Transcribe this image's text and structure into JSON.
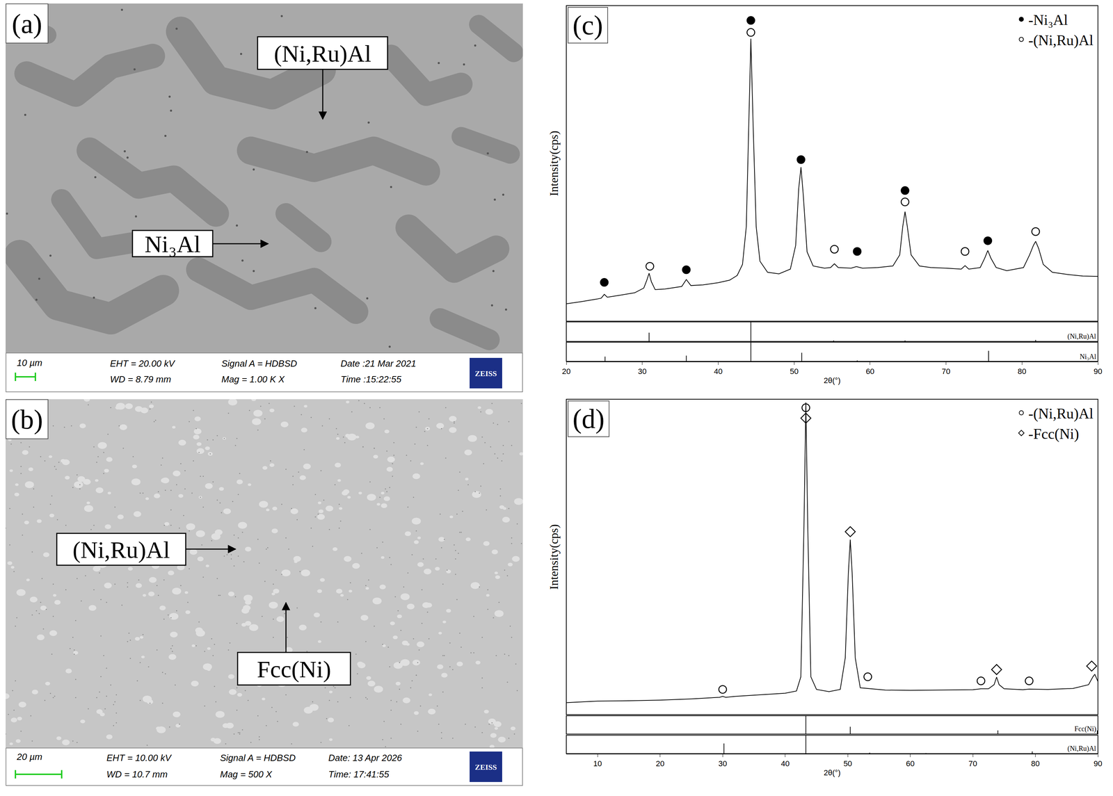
{
  "images": [
    {
      "panel": "(a)",
      "labels": [
        "(Ni,Ru)Al",
        "Ni₃Al"
      ],
      "info_bar": {
        "scale_bar": "10 µm",
        "eht": "EHT = 20.00 kV",
        "wd": "WD = 8.79 mm",
        "signal": "Signal A = HDBSD",
        "mag": "Mag = 1.00 K X",
        "date": "Date :21 Mar 2021",
        "time": "Time :15:22:55",
        "logo": "ZEISS"
      }
    },
    {
      "panel": "(b)",
      "labels": [
        "(Ni,Ru)Al",
        "Fcc(Ni)"
      ],
      "info_bar": {
        "scale_bar": "20 µm",
        "eht": "EHT = 10.00 kV",
        "wd": "WD = 10.7 mm",
        "signal": "Signal A = HDBSD",
        "mag": "Mag = 500 X",
        "date": "Date: 13 Apr 2026",
        "time": "Time: 17:41:55",
        "logo": "ZEISS"
      }
    }
  ],
  "chart_data": [
    {
      "panel": "(c)",
      "type": "line",
      "x_label": "2θ(°)",
      "y_label": "Intensity(cps)",
      "xlim": [
        20,
        90
      ],
      "xticks": [
        20,
        30,
        40,
        50,
        60,
        70,
        80,
        90
      ],
      "ylim": [
        0,
        100
      ],
      "yticks": [],
      "tick_labels": "x",
      "grid": false,
      "legend": "upper right",
      "pattern": {
        "color": "#000000",
        "x": [
          20,
          22,
          24,
          24.6,
          25.0,
          25.4,
          27,
          29,
          30.2,
          30.6,
          30.9,
          31.2,
          31.7,
          33,
          35.2,
          35.8,
          36.4,
          38,
          40,
          41.5,
          42.5,
          43.2,
          43.7,
          44.0,
          44.3,
          44.6,
          45.0,
          45.5,
          46.5,
          48,
          49.5,
          50.2,
          50.6,
          50.9,
          51.2,
          51.7,
          52.5,
          54,
          54.8,
          55.3,
          55.8,
          57.5,
          58.2,
          59,
          61,
          63,
          63.9,
          64.3,
          64.6,
          64.9,
          65.4,
          66.5,
          68,
          70,
          72,
          72.5,
          73,
          74.5,
          75.1,
          75.5,
          75.9,
          76.6,
          78,
          80.2,
          81.0,
          81.5,
          81.8,
          82.2,
          82.8,
          84,
          86,
          88,
          90
        ],
        "values": [
          5.5,
          6.2,
          7.0,
          7.3,
          8.5,
          7.6,
          8.2,
          9.0,
          10.5,
          13,
          15.2,
          12.5,
          10,
          10.2,
          11,
          13.2,
          11.3,
          11.5,
          12.2,
          13,
          14.5,
          18,
          30,
          60,
          89.5,
          62,
          30,
          19,
          15.5,
          15,
          16.5,
          24,
          42,
          48.8,
          40,
          22,
          17.5,
          16.8,
          17,
          18.2,
          17,
          16.8,
          17.3,
          16.8,
          17,
          17.5,
          21,
          30,
          34.7,
          30,
          21,
          17.5,
          17,
          16.8,
          16.5,
          17.6,
          16.5,
          17,
          20,
          22.4,
          20,
          17,
          16,
          17,
          21,
          24,
          25.3,
          23,
          18,
          15.5,
          14.8,
          14.3,
          14.2
        ]
      },
      "series": [
        {
          "name": "-Ni₃Al",
          "marker": "circle",
          "color": "#000000",
          "x": [
            44.3,
            50.9,
            64.6,
            75.5,
            25.0,
            35.8,
            58.3
          ],
          "values": [
            95.3,
            51.2,
            41.4,
            25.5,
            12.3,
            16.3,
            22.1
          ]
        },
        {
          "name": "-(Ni,Ru)Al",
          "marker": "circle-open",
          "color": "#000000",
          "x": [
            44.3,
            64.6,
            81.8,
            31.0,
            55.3,
            72.5
          ],
          "values": [
            91.5,
            37.8,
            28.4,
            17.4,
            22.8,
            22.1
          ]
        }
      ],
      "reference_ylim": [
        0,
        100
      ],
      "references": [
        {
          "name": "(Ni,Ru)Al",
          "x": [
            30.9,
            44.3,
            55.2,
            64.6,
            81.8
          ],
          "values": [
            45,
            100,
            5,
            5,
            8
          ]
        },
        {
          "name": "Ni₃Al",
          "x": [
            25.1,
            35.8,
            44.3,
            51.0,
            58.3,
            75.6
          ],
          "values": [
            25,
            30,
            100,
            45,
            5,
            55
          ]
        }
      ]
    },
    {
      "panel": "(d)",
      "type": "line",
      "x_label": "2θ(°)",
      "y_label": "Intensity(cps)",
      "xlim": [
        5,
        90
      ],
      "xticks": [
        10,
        20,
        30,
        40,
        50,
        60,
        70,
        80,
        90
      ],
      "ylim": [
        0,
        100
      ],
      "yticks": [],
      "tick_labels": "x",
      "grid": false,
      "legend": "upper right",
      "pattern": {
        "color": "#000000",
        "x": [
          5,
          10,
          15,
          20,
          25,
          28,
          29.5,
          30,
          30.5,
          32,
          36,
          40,
          41.8,
          42.5,
          43.0,
          43.3,
          43.6,
          44.1,
          45,
          47,
          48.8,
          49.6,
          50.1,
          50.4,
          50.7,
          51.2,
          52,
          53.2,
          56,
          60,
          65,
          70,
          71.3,
          72.5,
          73.4,
          73.8,
          74.2,
          75,
          78,
          79,
          82,
          86,
          88.5,
          89.2,
          89.5,
          89.8,
          90
        ],
        "values": [
          3.8,
          4.3,
          4.4,
          4.6,
          5,
          5.3,
          5.5,
          5.8,
          5.5,
          5.8,
          6.3,
          6.8,
          7.5,
          12,
          60,
          99,
          60,
          12,
          8,
          7.3,
          8,
          18,
          45,
          55.5,
          45,
          18,
          8.5,
          8.3,
          7.8,
          7.7,
          7.8,
          7.9,
          8.2,
          8.2,
          9.5,
          11.9,
          9.5,
          8.2,
          7.9,
          8.1,
          8,
          8.3,
          9.5,
          12,
          12.8,
          11.5,
          10.5
        ]
      },
      "series": [
        {
          "name": "-(Ni,Ru)Al",
          "marker": "circle-open",
          "color": "#000000",
          "x": [
            43.3,
            30.0,
            53.2,
            71.3,
            79.0
          ],
          "values": [
            97.3,
            8.0,
            12.0,
            10.7,
            10.7
          ]
        },
        {
          "name": "-Fcc(Ni)",
          "marker": "diamond-open",
          "color": "#000000",
          "x": [
            43.3,
            50.4,
            73.8,
            89.0
          ],
          "values": [
            94.0,
            58.0,
            14.3,
            15.4
          ]
        }
      ],
      "reference_ylim": [
        0,
        100
      ],
      "references": [
        {
          "name": "Fcc(Ni)",
          "x": [
            43.3,
            50.4,
            74.0,
            89.9
          ],
          "values": [
            100,
            40,
            20,
            20
          ]
        },
        {
          "name": "(Ni,Ru)Al",
          "x": [
            30.2,
            43.3,
            53.5,
            62.5,
            79.5
          ],
          "values": [
            55,
            100,
            5,
            3,
            12
          ]
        }
      ]
    }
  ]
}
